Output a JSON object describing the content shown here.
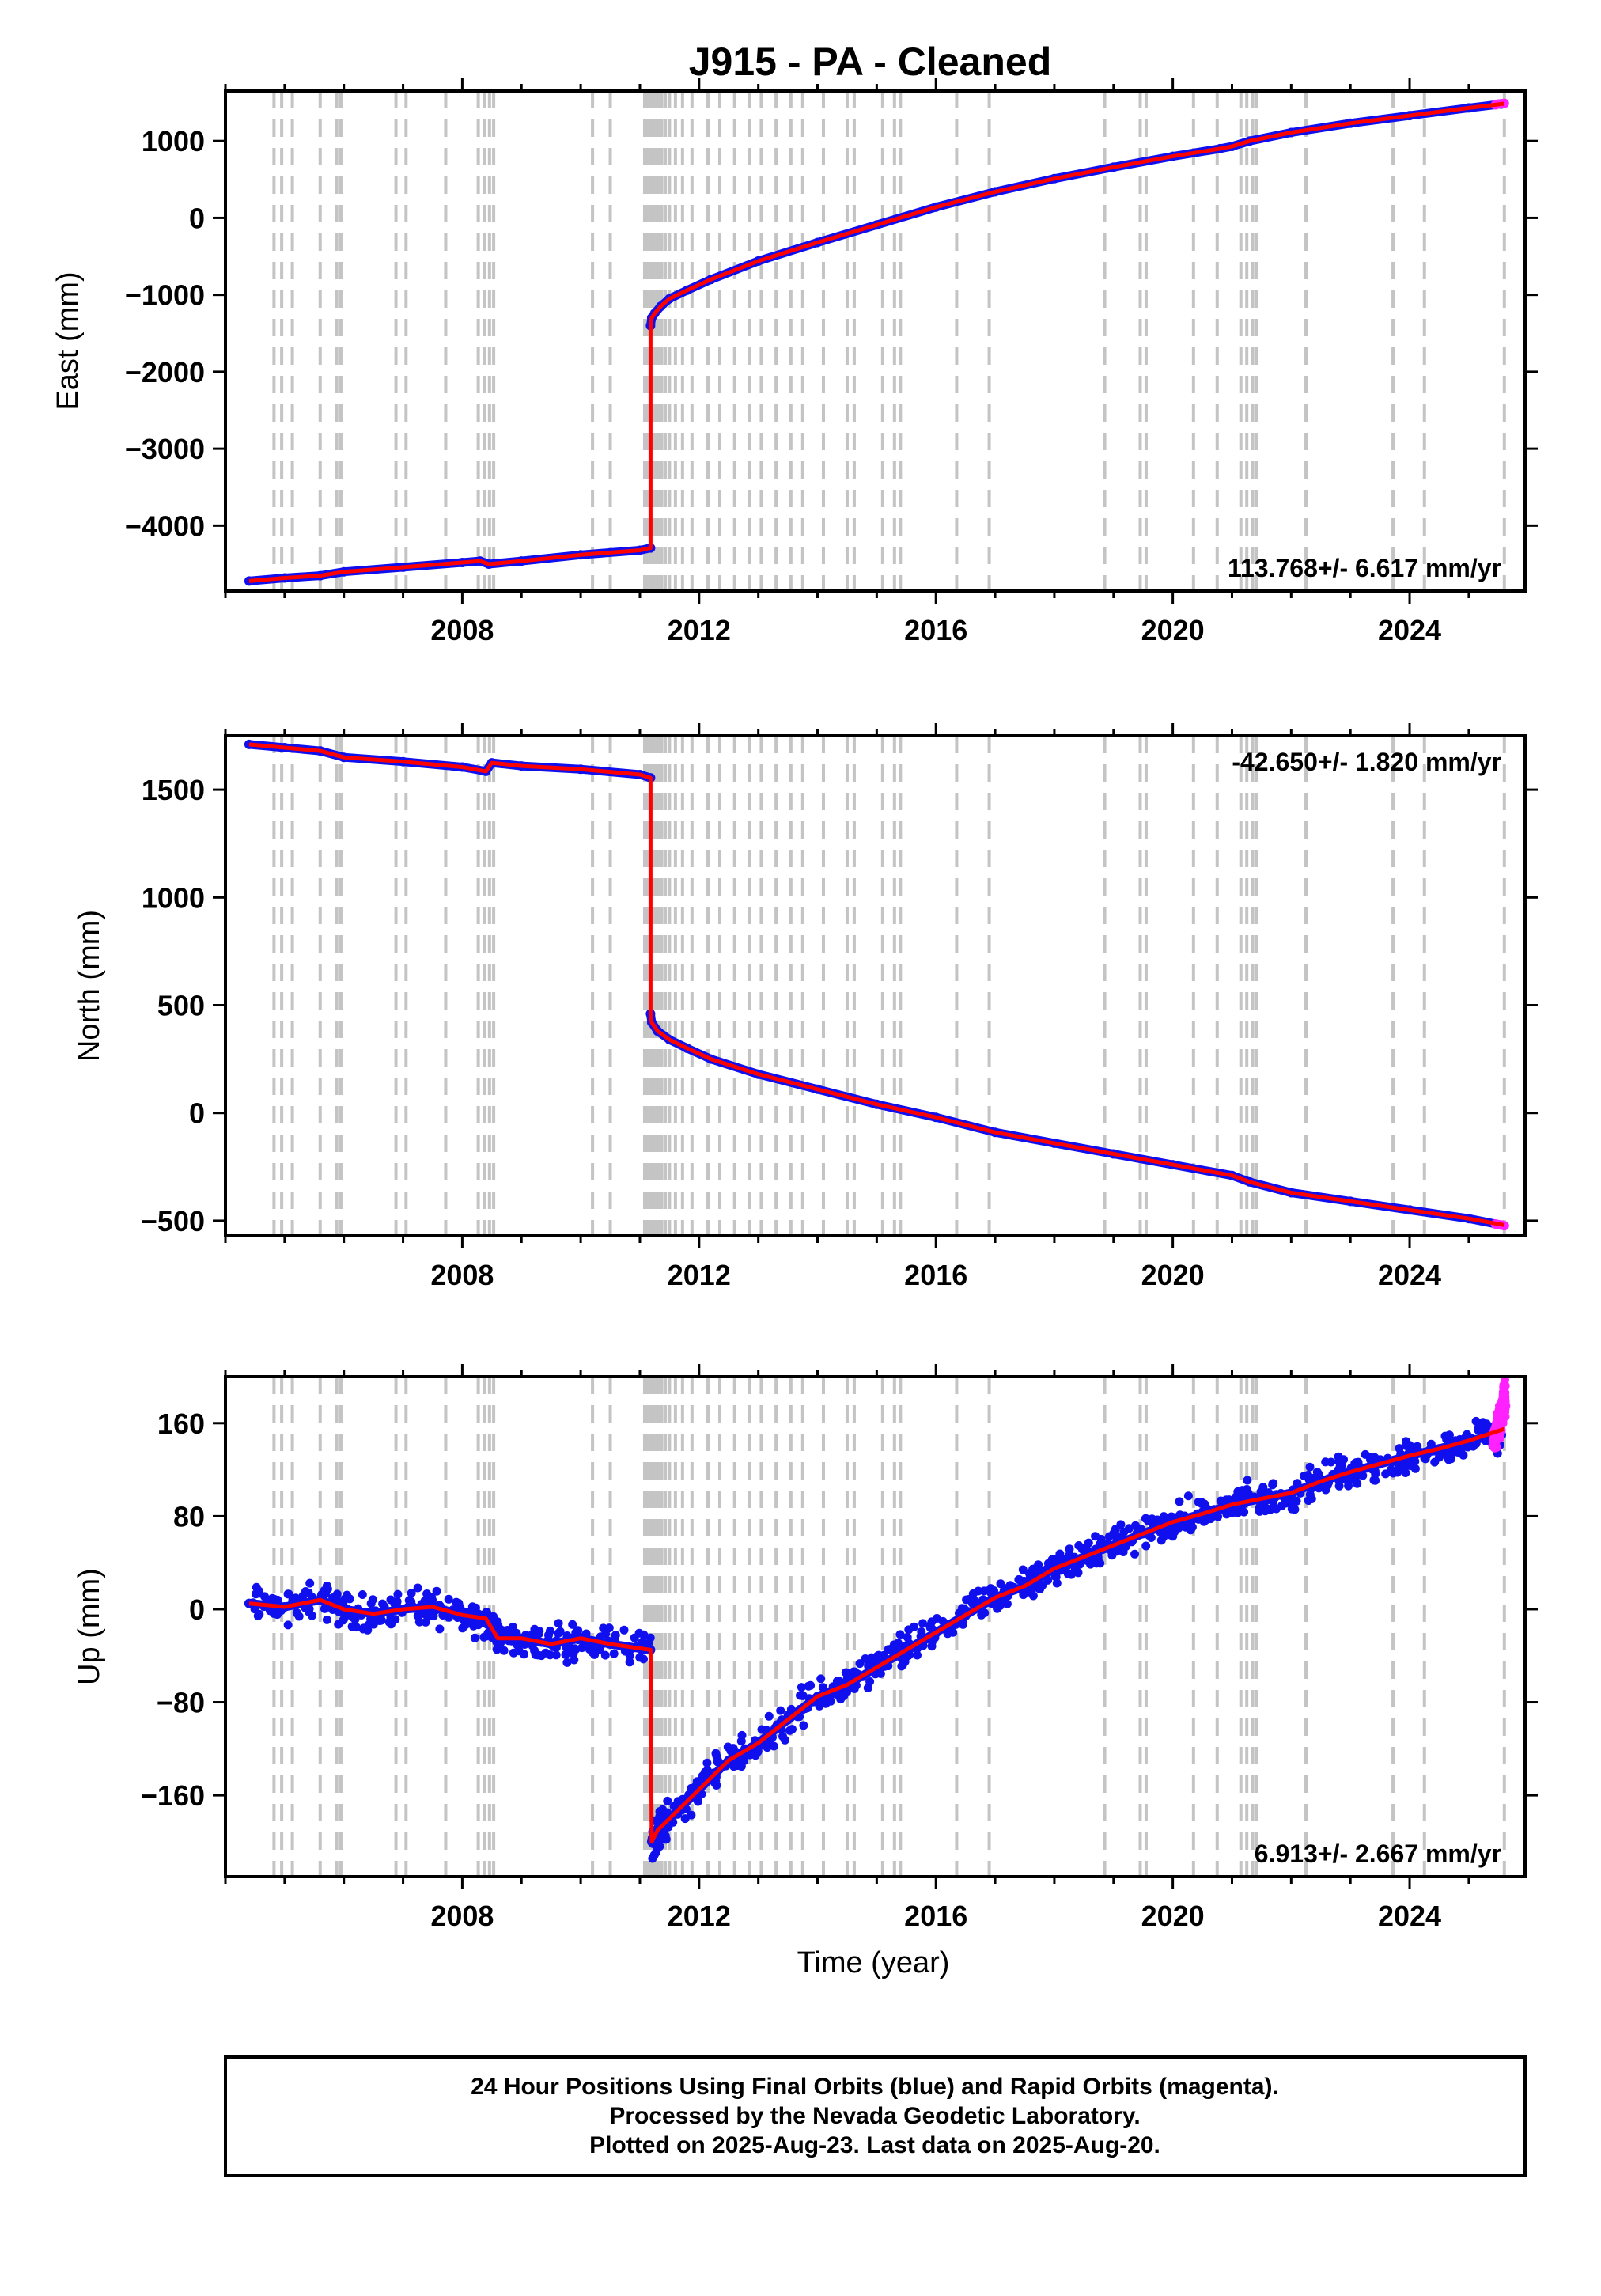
{
  "figure": {
    "title": "J915  - PA - Cleaned",
    "x_axis_label": "Time (year)",
    "footer_lines": [
      "24 Hour Positions Using Final Orbits (blue) and Rapid Orbits (magenta).",
      "Processed by the Nevada Geodetic Laboratory.",
      "Plotted on 2025-Aug-23. Last data on 2025-Aug-20."
    ]
  },
  "colors": {
    "final_orbits": "#1010ee",
    "rapid_orbits": "#ff22ff",
    "model": "#ff0000",
    "event_lines": "#c4c4c4",
    "frame": "#000000"
  },
  "event_lines_years": [
    2004.82,
    2004.95,
    2005.13,
    2005.6,
    2005.88,
    2005.95,
    2006.88,
    2007.05,
    2007.72,
    2008.27,
    2008.38,
    2008.46,
    2008.53,
    2010.2,
    2010.5,
    2011.08,
    2011.12,
    2011.17,
    2011.22,
    2011.27,
    2011.32,
    2011.37,
    2011.43,
    2011.5,
    2011.6,
    2011.72,
    2011.88,
    2012.15,
    2012.35,
    2012.6,
    2012.85,
    2013.05,
    2013.3,
    2013.55,
    2013.75,
    2014.1,
    2014.5,
    2014.62,
    2015.1,
    2015.3,
    2015.4,
    2016.35,
    2016.9,
    2018.85,
    2019.45,
    2019.55,
    2020.35,
    2020.75,
    2021.15,
    2021.25,
    2021.35,
    2021.42,
    2022.25,
    2023.72,
    2024.25,
    2025.6
  ],
  "chart_data": [
    {
      "type": "scatter",
      "component": "East",
      "ylabel": "East (mm)",
      "xlim": [
        2004.0,
        2025.95
      ],
      "ylim": [
        -4850,
        1650
      ],
      "x_ticks": [
        2008,
        2012,
        2016,
        2020,
        2024
      ],
      "y_ticks": [
        1000,
        0,
        -1000,
        -2000,
        -3000,
        -4000
      ],
      "rate_label": "113.768+/- 6.617 mm/yr",
      "rate_label_position": "bottom-right",
      "grid": false,
      "series": [
        {
          "role": "final_orbits",
          "marker": "dot",
          "segments": [
            {
              "x": [
                2004.4,
                2005.0,
                2005.6,
                2006.0,
                2007.0,
                2008.0,
                2008.3,
                2008.45,
                2009.0,
                2010.0,
                2011.0,
                2011.18
              ],
              "y": [
                -4720,
                -4680,
                -4650,
                -4600,
                -4540,
                -4480,
                -4460,
                -4500,
                -4460,
                -4380,
                -4320,
                -4290
              ]
            },
            {
              "x": [
                2011.18,
                2011.2,
                2011.25,
                2011.35,
                2011.5,
                2011.8,
                2012.2,
                2013.0,
                2014.0,
                2015.0,
                2016.0,
                2017.0,
                2018.0,
                2019.0,
                2020.0,
                2020.8,
                2021.0,
                2021.3,
                2022.0,
                2023.0,
                2024.0,
                2025.0,
                2025.55
              ],
              "y": [
                -1400,
                -1300,
                -1240,
                -1150,
                -1050,
                -940,
                -800,
                -560,
                -320,
                -90,
                140,
                340,
                510,
                660,
                800,
                900,
                930,
                1000,
                1110,
                1230,
                1330,
                1430,
                1480
              ]
            }
          ]
        },
        {
          "role": "rapid_orbits",
          "marker": "dot",
          "segments": [
            {
              "x": [
                2025.45,
                2025.5,
                2025.55,
                2025.6
              ],
              "y": [
                1470,
                1480,
                1485,
                1490
              ]
            }
          ]
        },
        {
          "role": "model",
          "marker": "line",
          "segments": [
            {
              "x": [
                2004.4,
                2005.0,
                2005.6,
                2006.0,
                2007.0,
                2008.0,
                2008.3,
                2008.45,
                2009.0,
                2010.0,
                2011.0,
                2011.18,
                2011.18,
                2011.2,
                2011.25,
                2011.35,
                2011.5,
                2011.8,
                2012.2,
                2013.0,
                2014.0,
                2015.0,
                2016.0,
                2017.0,
                2018.0,
                2019.0,
                2020.0,
                2020.8,
                2021.0,
                2021.3,
                2022.0,
                2023.0,
                2024.0,
                2025.0,
                2025.6
              ],
              "y": [
                -4720,
                -4680,
                -4650,
                -4600,
                -4540,
                -4480,
                -4460,
                -4500,
                -4460,
                -4380,
                -4320,
                -4290,
                -1400,
                -1300,
                -1240,
                -1150,
                -1050,
                -940,
                -800,
                -560,
                -320,
                -90,
                140,
                340,
                510,
                660,
                800,
                900,
                930,
                1000,
                1110,
                1230,
                1330,
                1430,
                1485
              ]
            }
          ]
        }
      ]
    },
    {
      "type": "scatter",
      "component": "North",
      "ylabel": "North (mm)",
      "xlim": [
        2004.0,
        2025.95
      ],
      "ylim": [
        -570,
        1750
      ],
      "x_ticks": [
        2008,
        2012,
        2016,
        2020,
        2024
      ],
      "y_ticks": [
        1500,
        1000,
        500,
        0,
        -500
      ],
      "rate_label": "-42.650+/- 1.820 mm/yr",
      "rate_label_position": "top-right",
      "grid": false,
      "series": [
        {
          "role": "final_orbits",
          "marker": "dot",
          "segments": [
            {
              "x": [
                2004.4,
                2005.0,
                2005.6,
                2006.0,
                2007.0,
                2008.0,
                2008.4,
                2008.5,
                2009.0,
                2010.0,
                2011.0,
                2011.18
              ],
              "y": [
                1710,
                1695,
                1680,
                1650,
                1630,
                1605,
                1585,
                1625,
                1610,
                1595,
                1570,
                1555
              ]
            },
            {
              "x": [
                2011.18,
                2011.2,
                2011.3,
                2011.5,
                2011.8,
                2012.2,
                2013.0,
                2014.0,
                2015.0,
                2016.0,
                2017.0,
                2018.0,
                2019.0,
                2020.0,
                2021.0,
                2021.3,
                2022.0,
                2023.0,
                2024.0,
                2025.0,
                2025.55
              ],
              "y": [
                460,
                420,
                380,
                340,
                300,
                250,
                180,
                110,
                40,
                -20,
                -90,
                -140,
                -190,
                -240,
                -290,
                -320,
                -370,
                -410,
                -450,
                -490,
                -520
              ]
            }
          ]
        },
        {
          "role": "rapid_orbits",
          "marker": "dot",
          "segments": [
            {
              "x": [
                2025.45,
                2025.5,
                2025.55,
                2025.6
              ],
              "y": [
                -515,
                -518,
                -520,
                -523
              ]
            }
          ]
        },
        {
          "role": "model",
          "marker": "line",
          "segments": [
            {
              "x": [
                2004.4,
                2005.0,
                2005.6,
                2006.0,
                2007.0,
                2008.0,
                2008.4,
                2008.5,
                2009.0,
                2010.0,
                2011.0,
                2011.18,
                2011.18,
                2011.2,
                2011.3,
                2011.5,
                2011.8,
                2012.2,
                2013.0,
                2014.0,
                2015.0,
                2016.0,
                2017.0,
                2018.0,
                2019.0,
                2020.0,
                2021.0,
                2021.3,
                2022.0,
                2023.0,
                2024.0,
                2025.0,
                2025.6
              ],
              "y": [
                1710,
                1695,
                1680,
                1650,
                1630,
                1605,
                1585,
                1625,
                1610,
                1595,
                1570,
                1555,
                460,
                420,
                380,
                340,
                300,
                250,
                180,
                110,
                40,
                -20,
                -90,
                -140,
                -190,
                -240,
                -290,
                -320,
                -370,
                -410,
                -450,
                -490,
                -520
              ]
            }
          ]
        }
      ]
    },
    {
      "type": "scatter",
      "component": "Up",
      "ylabel": "Up (mm)",
      "xlim": [
        2004.0,
        2025.95
      ],
      "ylim": [
        -230,
        200
      ],
      "x_ticks": [
        2008,
        2012,
        2016,
        2020,
        2024
      ],
      "y_ticks": [
        160,
        80,
        0,
        -80,
        -160
      ],
      "rate_label": "6.913+/- 2.667 mm/yr",
      "rate_label_position": "bottom-right",
      "grid": false,
      "scatter_spread_mm": 9,
      "series": [
        {
          "role": "final_orbits",
          "marker": "dot",
          "segments": [
            {
              "x": [
                2004.4,
                2005.0,
                2005.6,
                2006.0,
                2006.5,
                2007.0,
                2007.5,
                2008.0,
                2008.4,
                2008.6,
                2009.0,
                2009.5,
                2010.0,
                2010.5,
                2011.18
              ],
              "y": [
                5,
                2,
                8,
                0,
                -4,
                0,
                2,
                -5,
                -8,
                -25,
                -25,
                -30,
                -25,
                -30,
                -35
              ]
            },
            {
              "x": [
                2011.2,
                2011.3,
                2011.5,
                2012.0,
                2012.5,
                2013.0,
                2013.5,
                2014.0,
                2014.5,
                2015.0,
                2015.5,
                2016.0,
                2016.5,
                2017.0,
                2017.5,
                2018.0,
                2018.5,
                2019.0,
                2019.5,
                2020.0,
                2020.5,
                2021.0,
                2021.5,
                2022.0,
                2022.5,
                2023.0,
                2023.5,
                2024.0,
                2024.5,
                2025.0,
                2025.55
              ],
              "y": [
                -200,
                -190,
                -180,
                -155,
                -130,
                -115,
                -95,
                -75,
                -65,
                -50,
                -35,
                -20,
                -5,
                10,
                20,
                35,
                45,
                55,
                65,
                75,
                82,
                90,
                95,
                100,
                110,
                118,
                125,
                132,
                138,
                145,
                150
              ]
            }
          ]
        },
        {
          "role": "rapid_orbits",
          "marker": "dot",
          "segments": [
            {
              "x": [
                2025.42,
                2025.46,
                2025.5,
                2025.53,
                2025.56,
                2025.58,
                2025.6,
                2025.62
              ],
              "y": [
                145,
                150,
                160,
                158,
                170,
                178,
                185,
                175
              ]
            }
          ]
        },
        {
          "role": "model",
          "marker": "line",
          "segments": [
            {
              "x": [
                2004.4,
                2005.0,
                2005.6,
                2006.0,
                2006.5,
                2007.0,
                2007.5,
                2008.0,
                2008.4,
                2008.6,
                2009.0,
                2009.5,
                2010.0,
                2010.5,
                2011.18,
                2011.2,
                2011.3,
                2011.5,
                2012.0,
                2012.5,
                2013.0,
                2013.5,
                2014.0,
                2014.5,
                2015.0,
                2015.5,
                2016.0,
                2016.5,
                2017.0,
                2017.5,
                2018.0,
                2018.5,
                2019.0,
                2019.5,
                2020.0,
                2020.5,
                2021.0,
                2021.5,
                2022.0,
                2022.5,
                2023.0,
                2023.5,
                2024.0,
                2024.5,
                2025.0,
                2025.6
              ],
              "y": [
                5,
                2,
                8,
                0,
                -4,
                0,
                2,
                -5,
                -8,
                -25,
                -25,
                -30,
                -25,
                -30,
                -35,
                -200,
                -190,
                -180,
                -155,
                -130,
                -115,
                -95,
                -75,
                -65,
                -50,
                -35,
                -20,
                -5,
                10,
                20,
                35,
                45,
                55,
                65,
                75,
                82,
                90,
                95,
                100,
                110,
                118,
                125,
                132,
                138,
                145,
                155
              ]
            }
          ]
        }
      ]
    }
  ]
}
